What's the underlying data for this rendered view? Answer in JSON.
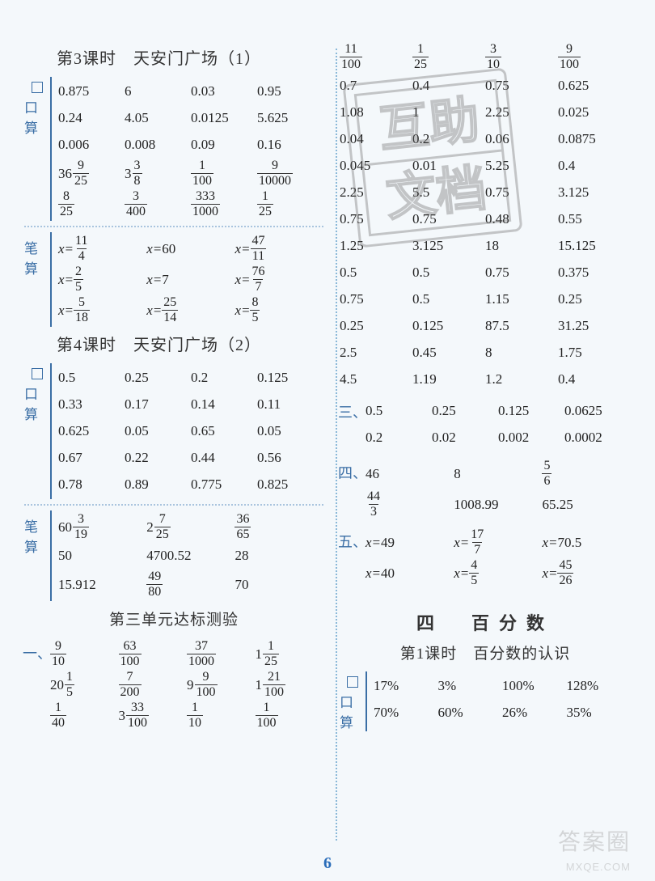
{
  "page_number": "6",
  "watermark_main": "答案圈",
  "watermark_sub": "MXQE.COM",
  "stamp_text_1": "互助",
  "stamp_text_2": "文档",
  "left": {
    "lesson3_title": "第3课时　天安门广场（1）",
    "kousuan_label": "口算",
    "bisuan_label": "笔算",
    "l3_kousuan": [
      [
        "0.875",
        "6",
        "0.03",
        "0.95"
      ],
      [
        "0.24",
        "4.05",
        "0.0125",
        "5.625"
      ],
      [
        "0.006",
        "0.008",
        "0.09",
        "0.16"
      ]
    ],
    "l3_kousuan_frac": [
      [
        {
          "w": "36",
          "n": "9",
          "d": "25"
        },
        {
          "w": "3",
          "n": "3",
          "d": "8"
        },
        {
          "n": "1",
          "d": "100"
        },
        {
          "n": "9",
          "d": "10000"
        }
      ],
      [
        {
          "n": "8",
          "d": "25"
        },
        {
          "n": "3",
          "d": "400"
        },
        {
          "n": "333",
          "d": "1000"
        },
        {
          "n": "1",
          "d": "25"
        }
      ]
    ],
    "l3_bisuan": [
      [
        {
          "lhs": "x=",
          "n": "11",
          "d": "4"
        },
        {
          "lhs": "x=",
          "v": "60"
        },
        {
          "lhs": "x=",
          "n": "47",
          "d": "11"
        }
      ],
      [
        {
          "lhs": "x=",
          "n": "2",
          "d": "5"
        },
        {
          "lhs": "x=",
          "v": "7"
        },
        {
          "lhs": "x=",
          "n": "76",
          "d": "7"
        }
      ],
      [
        {
          "lhs": "x=",
          "n": "5",
          "d": "18"
        },
        {
          "lhs": "x=",
          "n": "25",
          "d": "14"
        },
        {
          "lhs": "x=",
          "n": "8",
          "d": "5"
        }
      ]
    ],
    "lesson4_title": "第4课时　天安门广场（2）",
    "l4_kousuan": [
      [
        "0.5",
        "0.25",
        "0.2",
        "0.125"
      ],
      [
        "0.33",
        "0.17",
        "0.14",
        "0.11"
      ],
      [
        "0.625",
        "0.05",
        "0.65",
        "0.05"
      ],
      [
        "0.67",
        "0.22",
        "0.44",
        "0.56"
      ],
      [
        "0.78",
        "0.89",
        "0.775",
        "0.825"
      ]
    ],
    "l4_bisuan_r1": [
      {
        "w": "60",
        "n": "3",
        "d": "19"
      },
      {
        "w": "2",
        "n": "7",
        "d": "25"
      },
      {
        "n": "36",
        "d": "65"
      }
    ],
    "l4_bisuan_r2": [
      "50",
      "4700.52",
      "28"
    ],
    "l4_bisuan_r3": [
      {
        "v": "15.912"
      },
      {
        "n": "49",
        "d": "80"
      },
      {
        "v": "70"
      }
    ],
    "unit3_title": "第三单元达标测验",
    "one_label": "一、",
    "one_rows": [
      [
        {
          "n": "9",
          "d": "10"
        },
        {
          "n": "63",
          "d": "100"
        },
        {
          "n": "37",
          "d": "1000"
        },
        {
          "w": "1",
          "n": "1",
          "d": "25"
        }
      ],
      [
        {
          "w": "20",
          "n": "1",
          "d": "5"
        },
        {
          "n": "7",
          "d": "200"
        },
        {
          "w": "9",
          "n": "9",
          "d": "100"
        },
        {
          "w": "1",
          "n": "21",
          "d": "100"
        }
      ],
      [
        {
          "n": "1",
          "d": "40"
        },
        {
          "w": "3",
          "n": "33",
          "d": "100"
        },
        {
          "n": "1",
          "d": "10"
        },
        {
          "n": "1",
          "d": "100"
        }
      ]
    ]
  },
  "right": {
    "top_frac": [
      {
        "n": "11",
        "d": "100"
      },
      {
        "n": "1",
        "d": "25"
      },
      {
        "n": "3",
        "d": "10"
      },
      {
        "n": "9",
        "d": "100"
      }
    ],
    "dec_rows": [
      [
        "0.7",
        "0.4",
        "0.75",
        "0.625"
      ],
      [
        "1.08",
        "1",
        "2.25",
        "0.025"
      ],
      [
        "0.04",
        "0.2",
        "0.06",
        "0.0875"
      ],
      [
        "0.045",
        "0.01",
        "5.25",
        "0.4"
      ],
      [
        "2.25",
        "5.5",
        "0.75",
        "3.125"
      ],
      [
        "0.75",
        "0.75",
        "0.48",
        "0.55"
      ],
      [
        "1.25",
        "3.125",
        "18",
        "15.125"
      ],
      [
        "0.5",
        "0.5",
        "0.75",
        "0.375"
      ],
      [
        "0.75",
        "0.5",
        "1.15",
        "0.25"
      ],
      [
        "0.25",
        "0.125",
        "87.5",
        "31.25"
      ],
      [
        "2.5",
        "0.45",
        "8",
        "1.75"
      ],
      [
        "4.5",
        "1.19",
        "1.2",
        "0.4"
      ]
    ],
    "three_label": "三、",
    "three_rows": [
      [
        "0.5",
        "0.25",
        "0.125",
        "0.0625"
      ],
      [
        "0.2",
        "0.02",
        "0.002",
        "0.0002"
      ]
    ],
    "four_label": "四、",
    "four_r1": [
      {
        "v": "46"
      },
      {
        "v": "8"
      },
      {
        "n": "5",
        "d": "6"
      }
    ],
    "four_r2": [
      {
        "n": "44",
        "d": "3"
      },
      {
        "v": "1008.99"
      },
      {
        "v": "65.25"
      }
    ],
    "five_label": "五、",
    "five_rows": [
      [
        {
          "lhs": "x=",
          "v": "49"
        },
        {
          "lhs": "x=",
          "n": "17",
          "d": "7"
        },
        {
          "lhs": "x=",
          "v": "70.5"
        }
      ],
      [
        {
          "lhs": "x=",
          "v": "40"
        },
        {
          "lhs": "x=",
          "n": "4",
          "d": "5"
        },
        {
          "lhs": "x=",
          "n": "45",
          "d": "26"
        }
      ]
    ],
    "chapter_title": "四　百分数",
    "lesson1_title": "第1课时　百分数的认识",
    "pc_rows": [
      [
        "17%",
        "3%",
        "100%",
        "128%"
      ],
      [
        "70%",
        "60%",
        "26%",
        "35%"
      ]
    ]
  },
  "colors": {
    "label_blue": "#3a6ea5",
    "text": "#222",
    "dot_blue": "#8ab8d8"
  }
}
